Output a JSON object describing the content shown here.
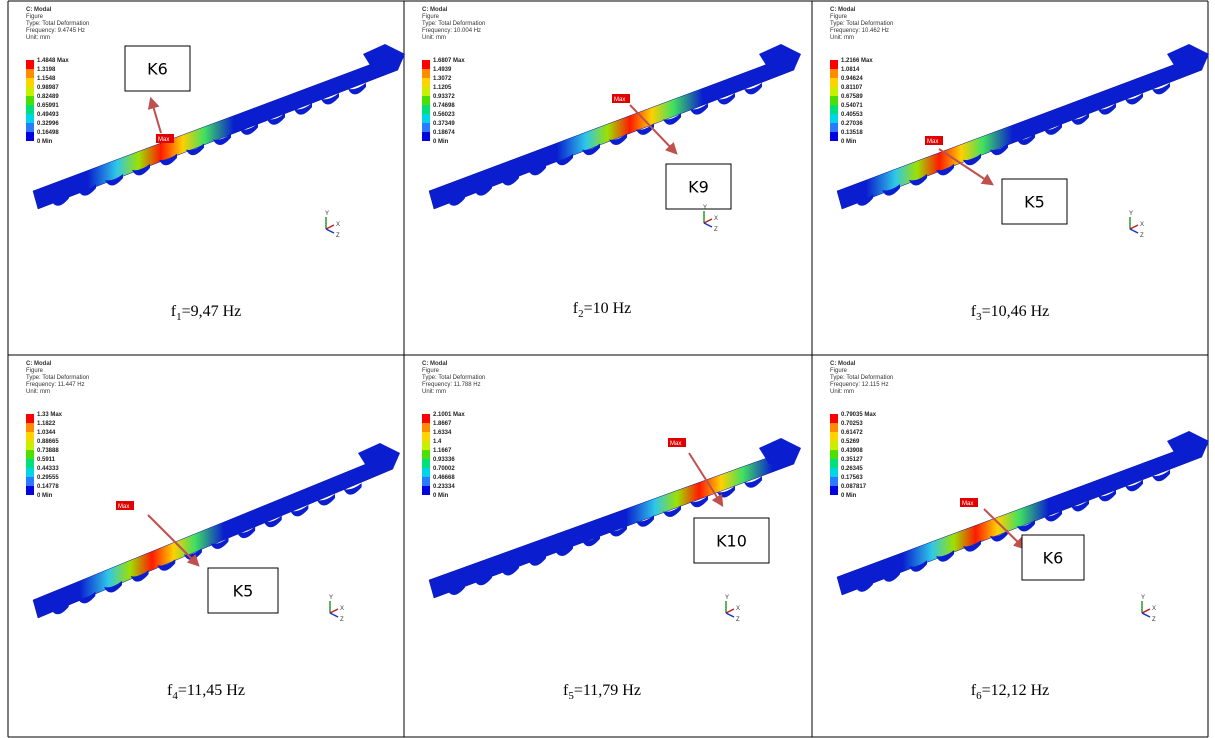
{
  "panels": [
    {
      "header": [
        "C: Modal",
        "Figure",
        "Type: Total Deformation",
        "Frequency: 9.4745 Hz",
        "Unit: mm"
      ],
      "legend": [
        "1.4848 Max",
        "1.3198",
        "1.1548",
        "0.98987",
        "0.82489",
        "0.65991",
        "0.49493",
        "0.32996",
        "0.16498",
        "0 Min"
      ],
      "max_tag": "Max",
      "mode_label": "K6",
      "axes": [
        "Y",
        "X",
        "Z"
      ],
      "caption": {
        "symbol": "f",
        "index": "1",
        "rest": "=9,47 Hz"
      }
    },
    {
      "header": [
        "C: Modal",
        "Figure",
        "Type: Total Deformation",
        "Frequency: 10.004 Hz",
        "Unit: mm"
      ],
      "legend": [
        "1.6807 Max",
        "1.4939",
        "1.3072",
        "1.1205",
        "0.93372",
        "0.74698",
        "0.56023",
        "0.37349",
        "0.18674",
        "0 Min"
      ],
      "max_tag": "Max",
      "mode_label": "K9",
      "axes": [
        "Y",
        "X",
        "Z"
      ],
      "caption": {
        "symbol": "f",
        "index": "2",
        "rest": "=10 Hz"
      }
    },
    {
      "header": [
        "C: Modal",
        "Figure",
        "Type: Total Deformation",
        "Frequency: 10.462 Hz",
        "Unit: mm"
      ],
      "legend": [
        "1.2166 Max",
        "1.0814",
        "0.94624",
        "0.81107",
        "0.67589",
        "0.54071",
        "0.40553",
        "0.27036",
        "0.13518",
        "0 Min"
      ],
      "max_tag": "Max",
      "mode_label": "K5",
      "axes": [
        "Y",
        "X",
        "Z"
      ],
      "caption": {
        "symbol": "f",
        "index": "3",
        "rest": "=10,46 Hz"
      }
    },
    {
      "header": [
        "C: Modal",
        "Figure",
        "Type: Total Deformation",
        "Frequency: 11.447 Hz",
        "Unit: mm"
      ],
      "legend": [
        "1.33 Max",
        "1.1822",
        "1.0344",
        "0.88665",
        "0.73888",
        "0.5911",
        "0.44333",
        "0.29555",
        "0.14778",
        "0 Min"
      ],
      "max_tag": "Max",
      "mode_label": "K5",
      "axes": [
        "Y",
        "X",
        "Z"
      ],
      "caption": {
        "symbol": "f",
        "index": "4",
        "rest": "=11,45 Hz"
      }
    },
    {
      "header": [
        "C: Modal",
        "Figure",
        "Type: Total Deformation",
        "Frequency: 11.788 Hz",
        "Unit: mm"
      ],
      "legend": [
        "2.1001 Max",
        "1.8667",
        "1.6334",
        "1.4",
        "1.1667",
        "0.93336",
        "0.70002",
        "0.46668",
        "0.23334",
        "0 Min"
      ],
      "max_tag": "Max",
      "mode_label": "K10",
      "axes": [
        "Y",
        "X",
        "Z"
      ],
      "caption": {
        "symbol": "f",
        "index": "5",
        "rest": "=11,79 Hz"
      }
    },
    {
      "header": [
        "C: Modal",
        "Figure",
        "Type: Total Deformation",
        "Frequency: 12.115 Hz",
        "Unit: mm"
      ],
      "legend": [
        "0.79035 Max",
        "0.70253",
        "0.61472",
        "0.5269",
        "0.43908",
        "0.35127",
        "0.26345",
        "0.17563",
        "0.087817",
        "0 Min"
      ],
      "max_tag": "Max",
      "mode_label": "K6",
      "axes": [
        "Y",
        "X",
        "Z"
      ],
      "caption": {
        "symbol": "f",
        "index": "6",
        "rest": "=12,12 Hz"
      }
    }
  ]
}
